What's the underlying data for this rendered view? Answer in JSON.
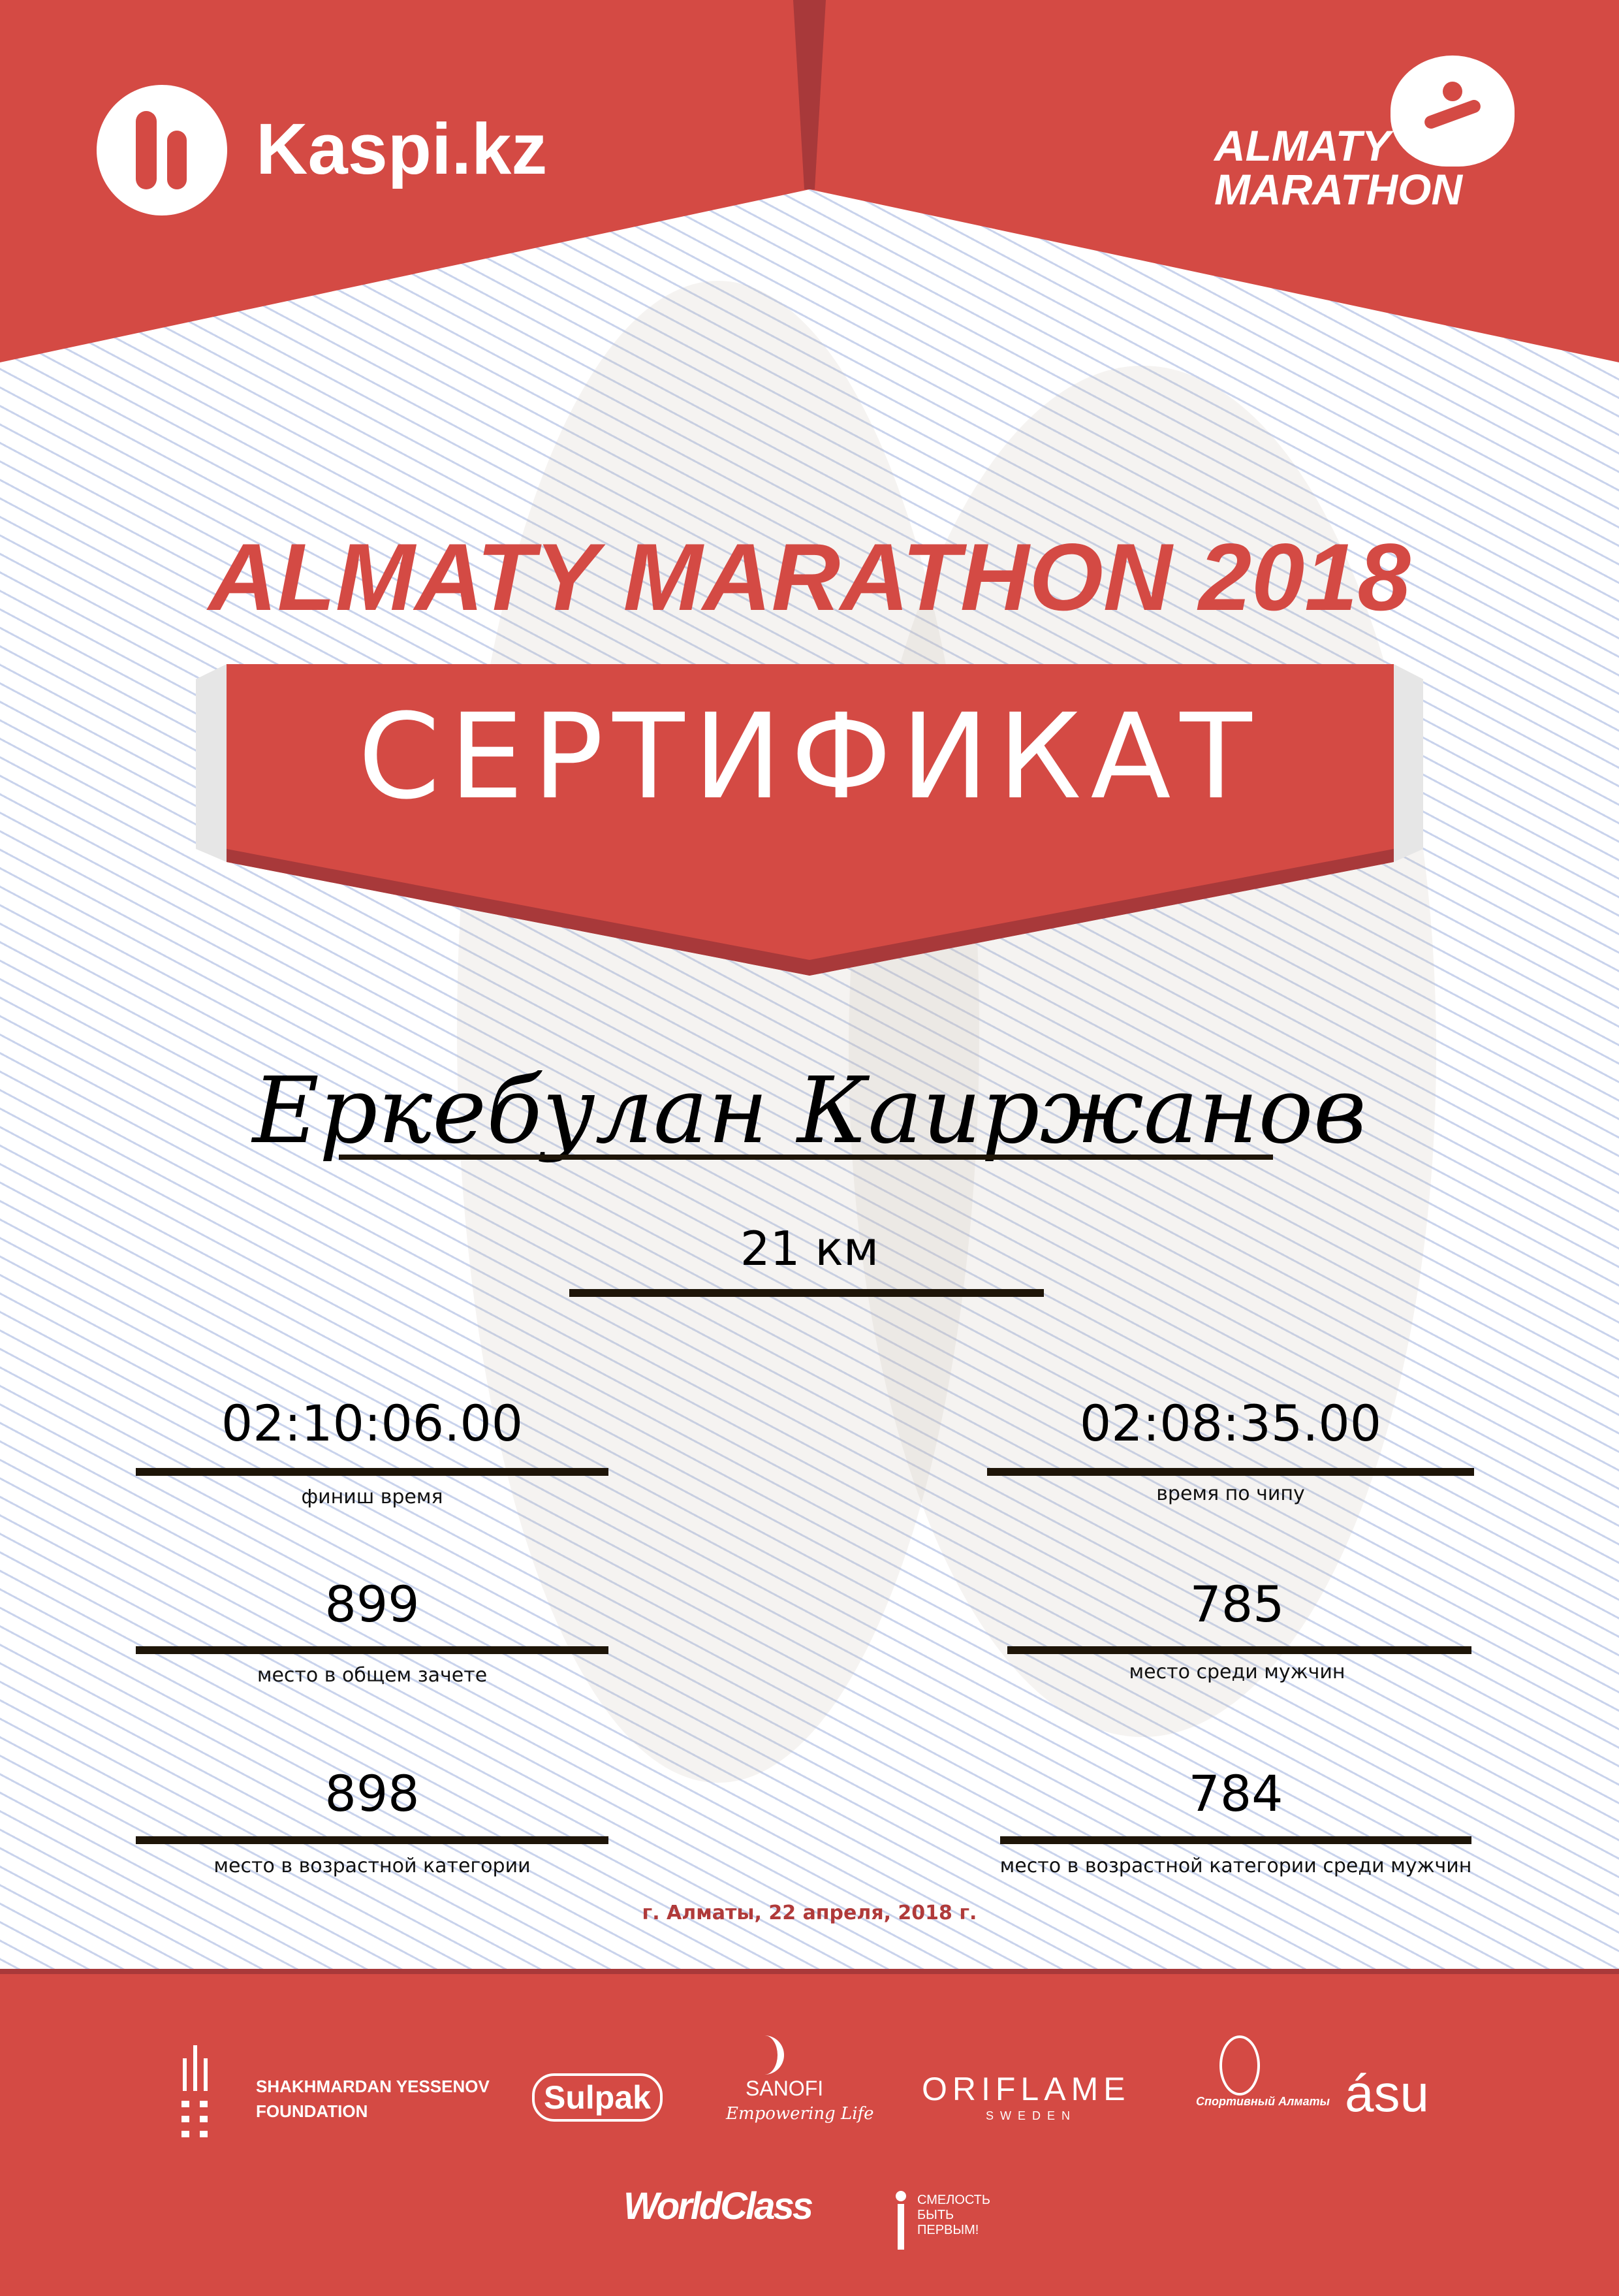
{
  "colors": {
    "brand_red": "#d44a44",
    "dark_red": "#a8393a",
    "date_red": "#b03a3a",
    "bar": "#1e1508"
  },
  "header": {
    "left_logo": "Kaspi.kz",
    "right_logo_line1": "ALMATY",
    "right_logo_line2": "MARATHON"
  },
  "title": "ALMATY MARATHON 2018",
  "banner": "СЕРТИФИКАТ",
  "participant": {
    "name": "Еркебулан Каиржанов",
    "distance": "21 км"
  },
  "results": {
    "finish_time": {
      "value": "02:10:06.00",
      "label": "финиш время"
    },
    "chip_time": {
      "value": "02:08:35.00",
      "label": "время по чипу"
    },
    "overall_place": {
      "value": "899",
      "label": "место в общем зачете"
    },
    "men_place": {
      "value": "785",
      "label": "место среди мужчин"
    },
    "age_place": {
      "value": "898",
      "label": "место в возрастной категории"
    },
    "age_men_place": {
      "value": "784",
      "label": "место в возрастной категории среди мужчин"
    }
  },
  "date": "г. Алматы, 22 апреля, 2018 г.",
  "sponsors": {
    "yessenov_1": "SHAKHMARDAN YESSENOV",
    "yessenov_2": "FOUNDATION",
    "sulpak": "Sulpak",
    "sanofi": "SANOFI",
    "sanofi_tag": "Empowering Life",
    "oriflame": "ORIFLAME",
    "oriflame_sub": "SWEDEN",
    "sport_almaty": "Спортивный Алматы",
    "asu": "ásu",
    "worldclass": "WorldClass",
    "fund_1": "СМЕЛОСТЬ",
    "fund_2": "БЫТЬ",
    "fund_3": "ПЕРВЫМ!"
  }
}
